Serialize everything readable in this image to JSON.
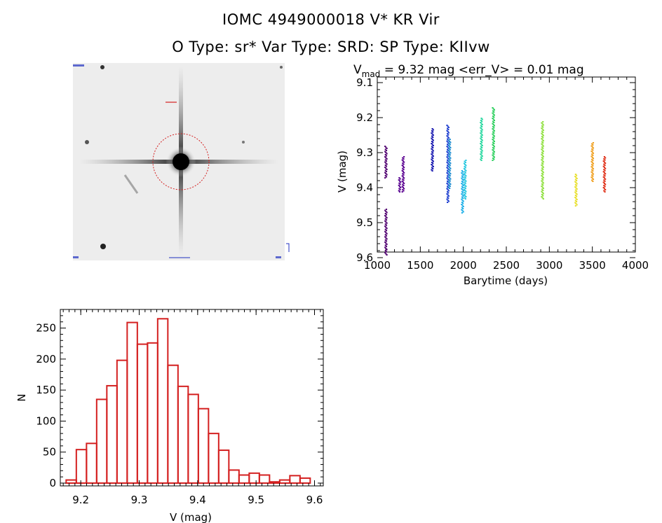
{
  "header": {
    "title_line1": "IOMC 4949000018    V* KR Vir",
    "title_line2": "O Type: sr*   Var Type: SRD:   SP Type: KIIvw"
  },
  "thumbnail": {
    "description_icon": "star-field-image",
    "marker_color": "#d42020"
  },
  "chart_data": [
    {
      "type": "scatter",
      "title": "V_mad = 9.32 mag <err_V> = 0.01 mag",
      "title_parts": {
        "sym": "V",
        "sub": "mad",
        "rest": " = 9.32 mag <err_V> = 0.01 mag"
      },
      "xlabel": "Barytime (days)",
      "ylabel": "V (mag)",
      "xlim": [
        1000,
        4000
      ],
      "ylim": [
        9.6,
        9.1
      ],
      "y_inverted": true,
      "xticks": [
        1000,
        1500,
        2000,
        2500,
        3000,
        3500,
        4000
      ],
      "yticks": [
        9.1,
        9.2,
        9.3,
        9.4,
        9.5,
        9.6
      ],
      "clusters": [
        {
          "x": 1100,
          "ymin": 9.28,
          "ymax": 9.37,
          "color": "#500070"
        },
        {
          "x": 1100,
          "ymin": 9.46,
          "ymax": 9.59,
          "color": "#500070"
        },
        {
          "x": 1260,
          "ymin": 9.37,
          "ymax": 9.41,
          "color": "#560090"
        },
        {
          "x": 1300,
          "ymin": 9.31,
          "ymax": 9.41,
          "color": "#5a0090"
        },
        {
          "x": 1640,
          "ymin": 9.23,
          "ymax": 9.35,
          "color": "#1818b0"
        },
        {
          "x": 1820,
          "ymin": 9.22,
          "ymax": 9.44,
          "color": "#2040d0"
        },
        {
          "x": 1840,
          "ymin": 9.26,
          "ymax": 9.4,
          "color": "#1c8cd0"
        },
        {
          "x": 1990,
          "ymin": 9.35,
          "ymax": 9.47,
          "color": "#20b0e8"
        },
        {
          "x": 2020,
          "ymin": 9.32,
          "ymax": 9.43,
          "color": "#28c8e0"
        },
        {
          "x": 2210,
          "ymin": 9.2,
          "ymax": 9.32,
          "color": "#28d8a0"
        },
        {
          "x": 2350,
          "ymin": 9.17,
          "ymax": 9.32,
          "color": "#30d060"
        },
        {
          "x": 2920,
          "ymin": 9.21,
          "ymax": 9.43,
          "color": "#90e040"
        },
        {
          "x": 3310,
          "ymin": 9.36,
          "ymax": 9.45,
          "color": "#e8e030"
        },
        {
          "x": 3500,
          "ymin": 9.27,
          "ymax": 9.38,
          "color": "#f0a020"
        },
        {
          "x": 3640,
          "ymin": 9.31,
          "ymax": 9.41,
          "color": "#e03018"
        }
      ]
    },
    {
      "type": "bar",
      "subtype": "histogram",
      "xlabel": "V (mag)",
      "ylabel": "N",
      "xlim": [
        9.165,
        9.615
      ],
      "ylim": [
        0,
        280
      ],
      "xticks": [
        9.2,
        9.3,
        9.4,
        9.5,
        9.6
      ],
      "yticks": [
        0,
        50,
        100,
        150,
        200,
        250
      ],
      "bin_edges_start": 9.175,
      "bin_width": 0.0174,
      "values": [
        5,
        54,
        64,
        135,
        157,
        198,
        259,
        224,
        226,
        265,
        190,
        156,
        143,
        120,
        80,
        53,
        21,
        13,
        16,
        13,
        2,
        5,
        12,
        8
      ],
      "bar_color": "#d42020"
    }
  ]
}
